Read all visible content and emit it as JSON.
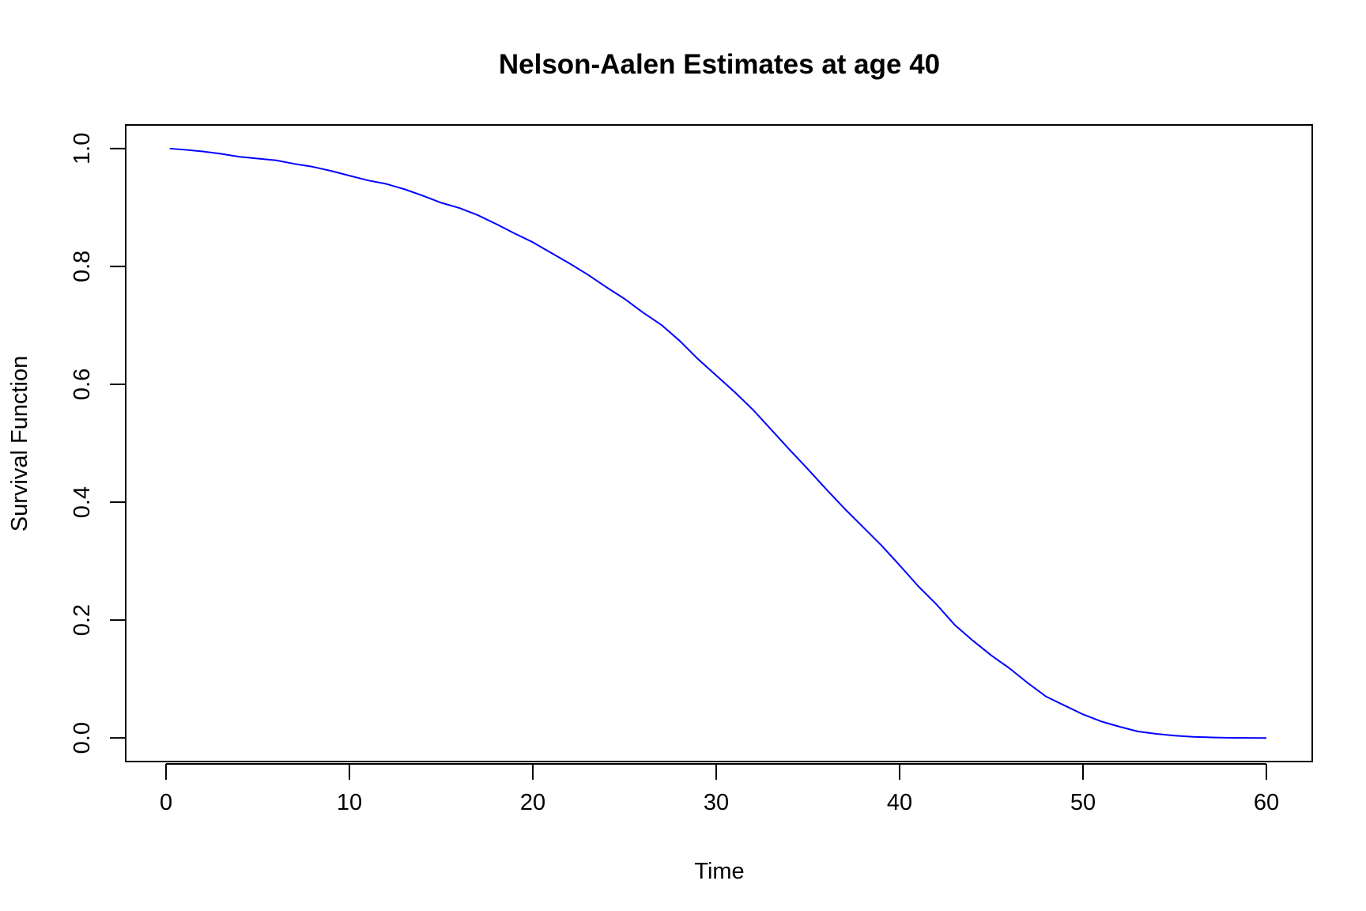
{
  "chart_data": {
    "type": "line",
    "title": "Nelson-Aalen Estimates at age 40",
    "xlabel": "Time",
    "ylabel": "Survival Function",
    "xlim": [
      -2.2,
      62.5
    ],
    "ylim": [
      -0.04,
      1.04
    ],
    "xticks": [
      0,
      10,
      20,
      30,
      40,
      50,
      60
    ],
    "yticks": [
      0.0,
      0.2,
      0.4,
      0.6,
      0.8,
      1.0
    ],
    "xtick_labels": [
      "0",
      "10",
      "20",
      "30",
      "40",
      "50",
      "60"
    ],
    "ytick_labels": [
      "0.0",
      "0.2",
      "0.4",
      "0.6",
      "0.8",
      "1.0"
    ],
    "grid": false,
    "series": [
      {
        "color": "#0000ff",
        "x": [
          0.2,
          1,
          2,
          3,
          4,
          5,
          6,
          7,
          8,
          9,
          10,
          11,
          12,
          13,
          14,
          15,
          16,
          17,
          18,
          19,
          20,
          21,
          22,
          23,
          24,
          25,
          26,
          27,
          28,
          29,
          30,
          31,
          32,
          33,
          34,
          35,
          36,
          37,
          38,
          39,
          40,
          41,
          42,
          43,
          44,
          45,
          46,
          47,
          48,
          49,
          50,
          51,
          52,
          53,
          54,
          55,
          56,
          57,
          58,
          59,
          60
        ],
        "y": [
          1.0,
          0.998,
          0.995,
          0.991,
          0.986,
          0.983,
          0.98,
          0.974,
          0.969,
          0.962,
          0.954,
          0.946,
          0.94,
          0.931,
          0.92,
          0.908,
          0.899,
          0.887,
          0.872,
          0.856,
          0.841,
          0.823,
          0.805,
          0.786,
          0.765,
          0.745,
          0.722,
          0.701,
          0.674,
          0.643,
          0.615,
          0.587,
          0.557,
          0.523,
          0.489,
          0.456,
          0.422,
          0.389,
          0.358,
          0.327,
          0.293,
          0.258,
          0.227,
          0.192,
          0.165,
          0.14,
          0.118,
          0.093,
          0.07,
          0.055,
          0.04,
          0.028,
          0.019,
          0.011,
          0.007,
          0.004,
          0.002,
          0.001,
          0.0003,
          0.0001,
          0.0
        ]
      }
    ]
  }
}
